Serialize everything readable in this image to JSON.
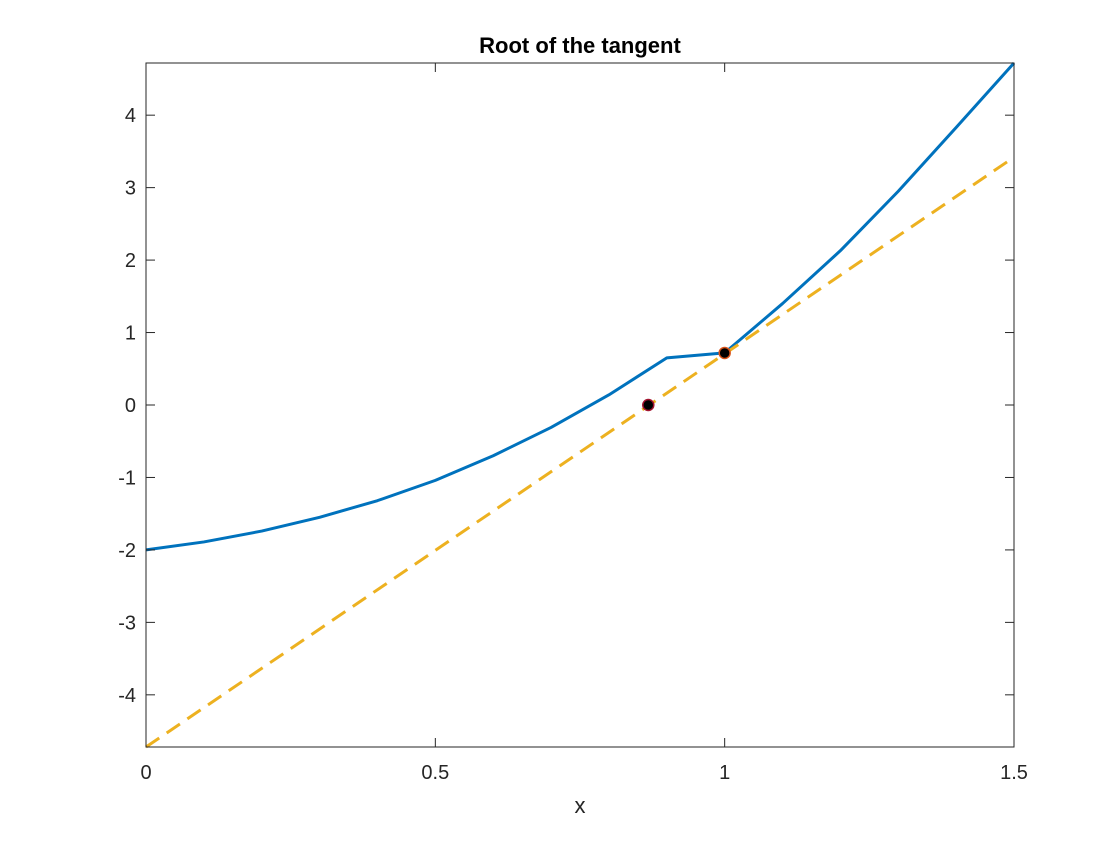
{
  "chart_data": {
    "type": "line",
    "title": "Root of the tangent",
    "xlabel": "x",
    "ylabel": "",
    "xlim": [
      0,
      1.5
    ],
    "ylim": [
      -4.72,
      4.72
    ],
    "x_ticks": [
      0,
      0.5,
      1,
      1.5
    ],
    "x_tick_labels": [
      "0",
      "0.5",
      "1",
      "1.5"
    ],
    "y_ticks": [
      -4,
      -3,
      -2,
      -1,
      0,
      1,
      2,
      3,
      4
    ],
    "y_tick_labels": [
      "-4",
      "-3",
      "-2",
      "-1",
      "0",
      "1",
      "2",
      "3",
      "4"
    ],
    "grid": false,
    "series": [
      {
        "style": "solid",
        "color": "#0072BD",
        "x": [
          0,
          0.1,
          0.2,
          0.3,
          0.4,
          0.5,
          0.6,
          0.7,
          0.8,
          0.9,
          1.0,
          1.1,
          1.2,
          1.3,
          1.4,
          1.5
        ],
        "y": [
          -2.0,
          -1.89,
          -1.74,
          -1.55,
          -1.32,
          -1.04,
          -0.7,
          -0.31,
          0.14,
          0.65,
          0.72,
          1.4,
          2.13,
          2.95,
          3.83,
          4.72
        ]
      },
      {
        "style": "dashed",
        "color": "#EDB120",
        "x": [
          0,
          1.5
        ],
        "y": [
          -4.72,
          3.42
        ]
      }
    ],
    "points": [
      {
        "x": 0.868,
        "y": 0,
        "face": "#000000",
        "edge": "#A2142F"
      },
      {
        "x": 1.0,
        "y": 0.718,
        "face": "#000000",
        "edge": "#D95319"
      }
    ]
  }
}
